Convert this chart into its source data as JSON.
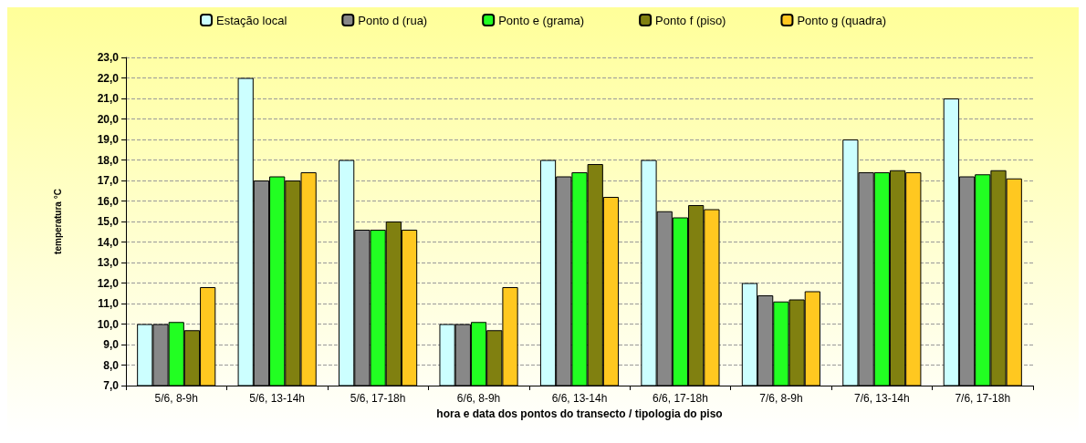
{
  "chart_data": {
    "type": "bar",
    "xlabel": "hora e data dos pontos do transecto / tipologia do piso",
    "ylabel": "temperatura °C",
    "categories": [
      "5/6, 8-9h",
      "5/6, 13-14h",
      "5/6, 17-18h",
      "6/6, 8-9h",
      "6/6, 13-14h",
      "6/6, 17-18h",
      "7/6, 8-9h",
      "7/6, 13-14h",
      "7/6, 17-18h"
    ],
    "series": [
      {
        "name": "Estação local",
        "color": "#ccffff",
        "values": [
          10.0,
          22.0,
          18.0,
          10.0,
          18.0,
          18.0,
          12.0,
          19.0,
          21.0
        ]
      },
      {
        "name": "Ponto d (rua)",
        "color": "#888888",
        "values": [
          10.0,
          17.0,
          14.6,
          10.0,
          17.2,
          15.5,
          11.4,
          17.4,
          17.2
        ]
      },
      {
        "name": "Ponto e (grama)",
        "color": "#22ff22",
        "values": [
          10.1,
          17.2,
          14.6,
          10.1,
          17.4,
          15.2,
          11.1,
          17.4,
          17.3
        ]
      },
      {
        "name": "Ponto f (piso)",
        "color": "#808010",
        "values": [
          9.7,
          17.0,
          15.0,
          9.7,
          17.8,
          15.8,
          11.2,
          17.5,
          17.5
        ]
      },
      {
        "name": "Ponto g (quadra)",
        "color": "#ffc820",
        "values": [
          11.8,
          17.4,
          14.6,
          11.8,
          16.2,
          15.6,
          11.6,
          17.4,
          17.1
        ]
      }
    ],
    "ylim": [
      7,
      23
    ],
    "yticks": [
      {
        "value": 7,
        "label": "7,0"
      },
      {
        "value": 8,
        "label": "8,0"
      },
      {
        "value": 9,
        "label": "9,0"
      },
      {
        "value": 10,
        "label": "10,0"
      },
      {
        "value": 11,
        "label": "11,0"
      },
      {
        "value": 12,
        "label": "12,0"
      },
      {
        "value": 13,
        "label": "13,0"
      },
      {
        "value": 14,
        "label": "14,0"
      },
      {
        "value": 15,
        "label": "15,0"
      },
      {
        "value": 16,
        "label": "16,0"
      },
      {
        "value": 17,
        "label": "17,0"
      },
      {
        "value": 18,
        "label": "18,0"
      },
      {
        "value": 19,
        "label": "19,0"
      },
      {
        "value": 20,
        "label": "20,0"
      },
      {
        "value": 21,
        "label": "21,0"
      },
      {
        "value": 22,
        "label": "22,0"
      },
      {
        "value": 23,
        "label": "23,0"
      }
    ],
    "grid": "y",
    "legend": "top"
  }
}
